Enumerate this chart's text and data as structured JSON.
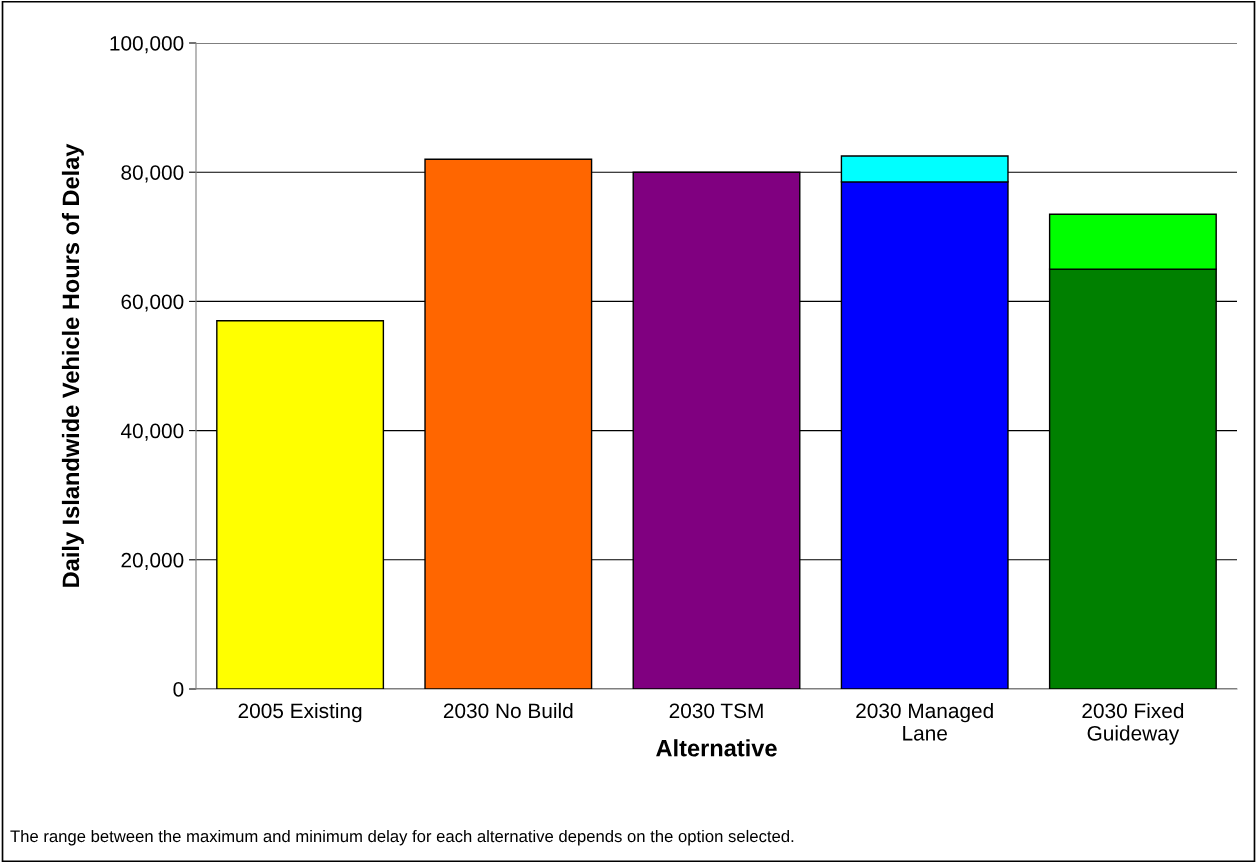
{
  "chart_data": {
    "type": "bar",
    "xlabel": "Alternative",
    "ylabel": "Daily Islandwide Vehicle Hours of Delay",
    "categories": [
      "2005 Existing",
      "2030 No Build",
      "2030 TSM",
      "2030 Managed\nLane",
      "2030 Fixed\nGuideway"
    ],
    "stacked": true,
    "series": [
      {
        "colors": [
          "#ffff00",
          "#ff6600",
          "#800080",
          "#0000ff",
          "#008000"
        ],
        "values": [
          57000,
          82000,
          80000,
          78500,
          65000
        ]
      },
      {
        "colors": [
          "#00ffff",
          "#00ffff",
          "#00ffff",
          "#00ffff",
          "#00ff00"
        ],
        "values": [
          null,
          null,
          null,
          4000,
          8500
        ]
      }
    ],
    "ylim": [
      0,
      100000
    ],
    "yticks": [
      {
        "value": 0,
        "label": "0"
      },
      {
        "value": 20000,
        "label": "20,000"
      },
      {
        "value": 40000,
        "label": "40,000"
      },
      {
        "value": 60000,
        "label": "60,000"
      },
      {
        "value": 80000,
        "label": "80,000"
      },
      {
        "value": 100000,
        "label": "100,000"
      }
    ],
    "grid": "y",
    "annotations": [
      "The range between the maximum and minimum delay for each alternative depends on the option selected."
    ]
  }
}
